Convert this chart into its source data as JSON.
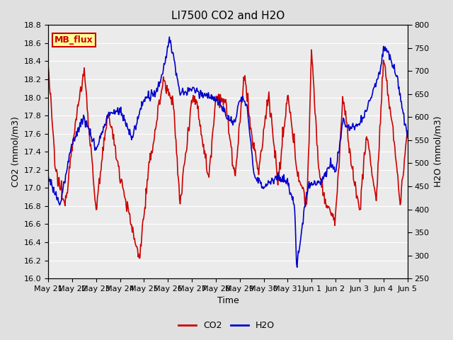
{
  "title": "LI7500 CO2 and H2O",
  "xlabel": "Time",
  "ylabel_left": "CO2 (mmol/m3)",
  "ylabel_right": "H2O (mmol/m3)",
  "co2_ylim": [
    16.0,
    18.8
  ],
  "h2o_ylim": [
    250,
    800
  ],
  "co2_yticks": [
    16.0,
    16.2,
    16.4,
    16.6,
    16.8,
    17.0,
    17.2,
    17.4,
    17.6,
    17.8,
    18.0,
    18.2,
    18.4,
    18.6,
    18.8
  ],
  "h2o_yticks": [
    250,
    300,
    350,
    400,
    450,
    500,
    550,
    600,
    650,
    700,
    750,
    800
  ],
  "co2_color": "#cc0000",
  "h2o_color": "#0000cc",
  "bg_color": "#e0e0e0",
  "plot_bg_color": "#ebebeb",
  "annotation_text": "MB_flux",
  "annotation_bg": "#ffff99",
  "annotation_border": "#cc0000",
  "title_fontsize": 11,
  "label_fontsize": 9,
  "tick_fontsize": 8,
  "legend_fontsize": 9,
  "line_width": 1.2,
  "n_points": 600,
  "x_tick_labels": [
    "May 21",
    "May 22",
    "May 23",
    "May 24",
    "May 25",
    "May 26",
    "May 27",
    "May 28",
    "May 29",
    "May 30",
    "May 31",
    "Jun 1",
    "Jun 2",
    "Jun 3",
    "Jun 4",
    "Jun 5"
  ]
}
